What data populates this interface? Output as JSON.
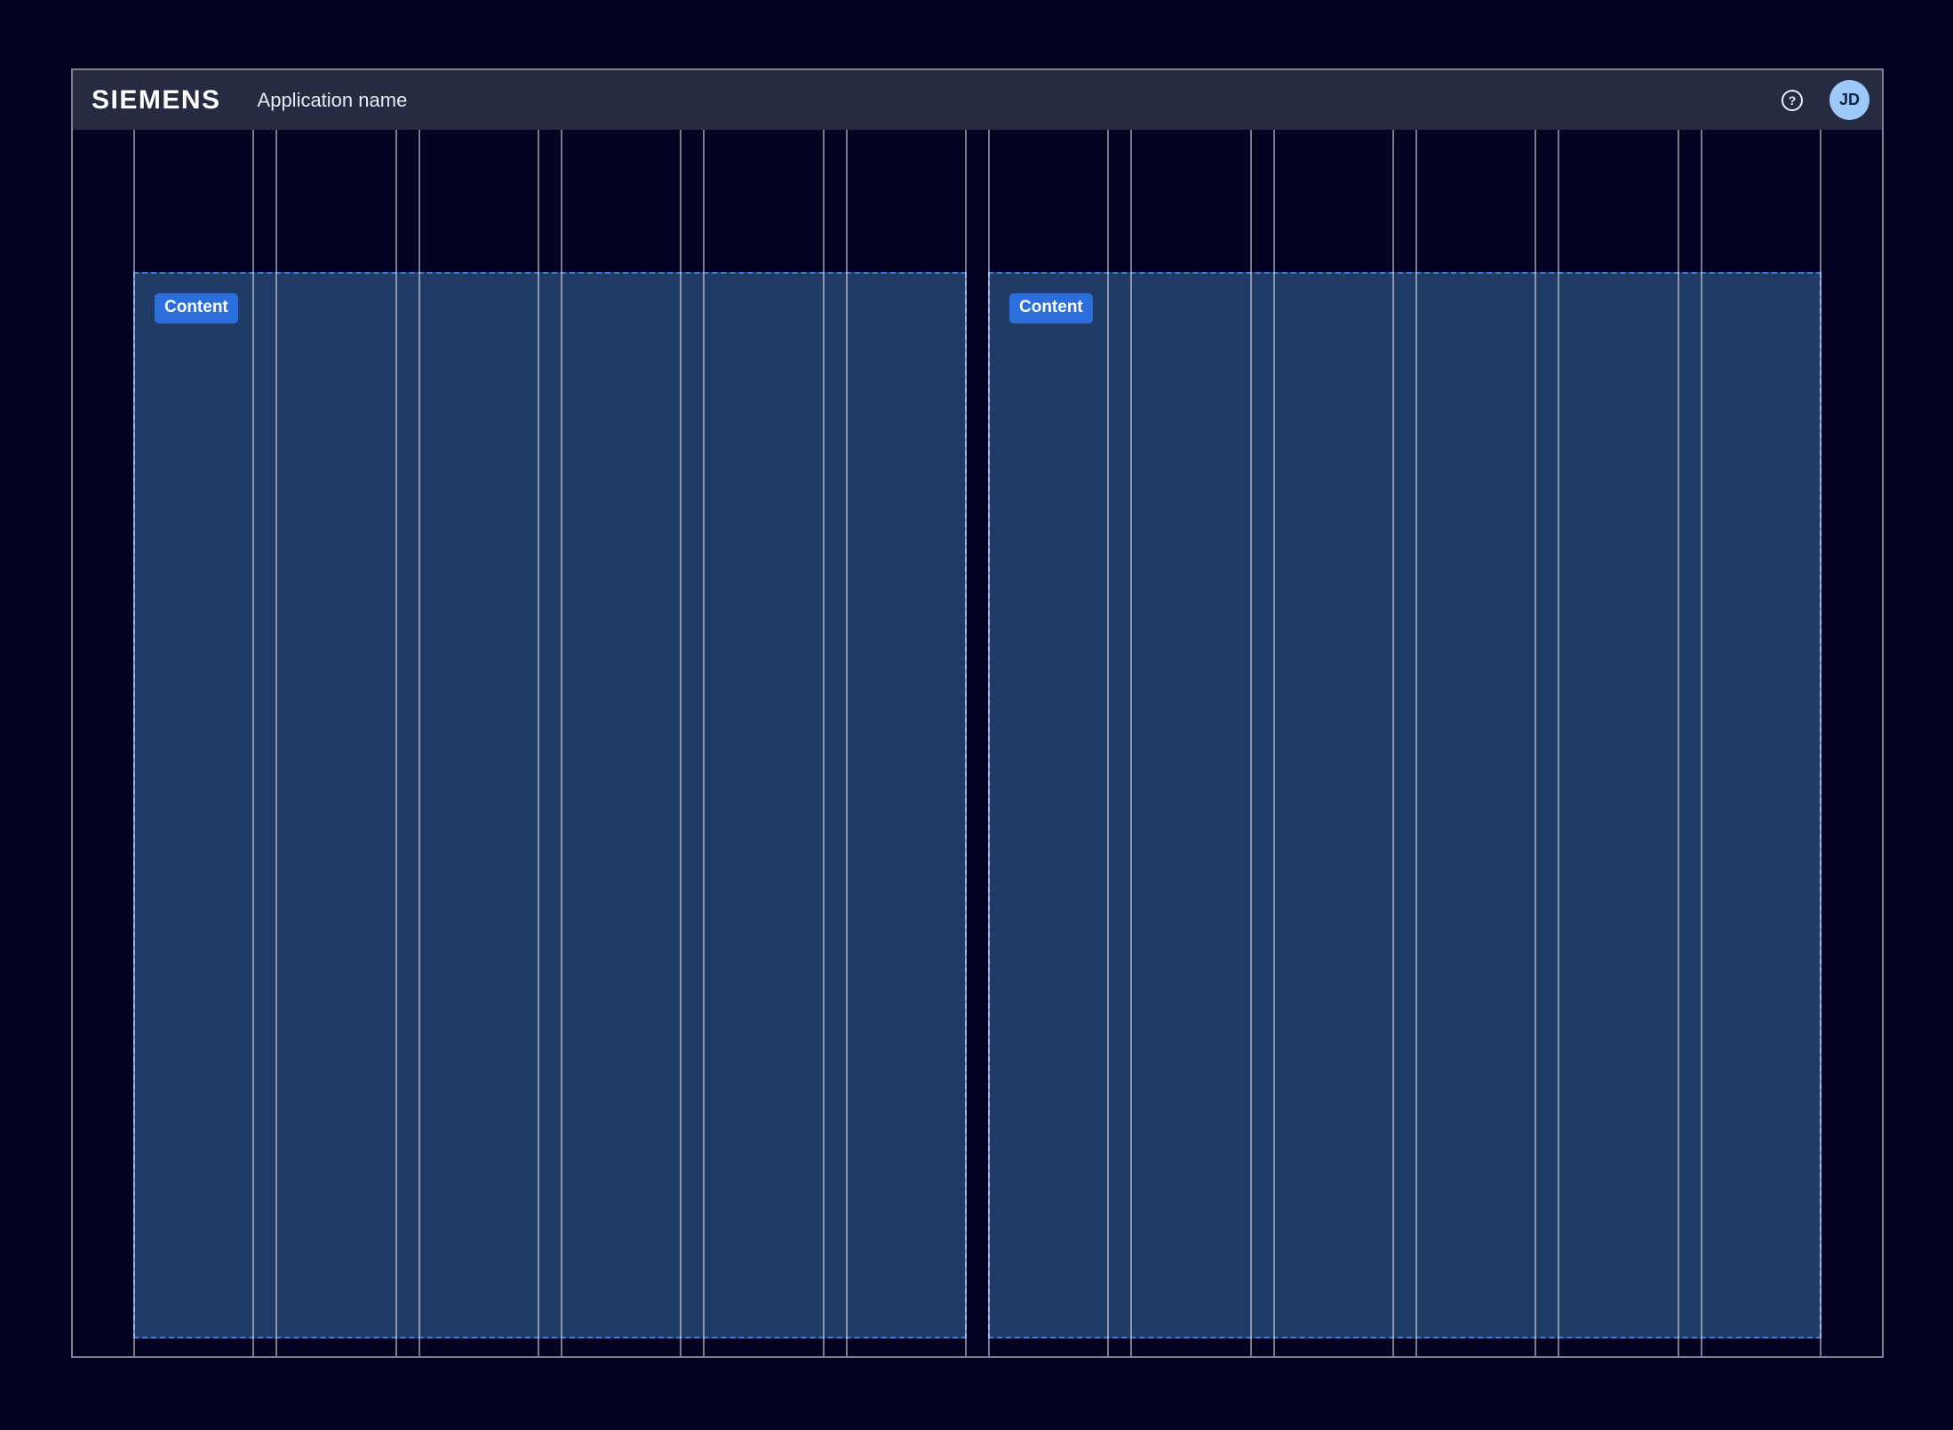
{
  "header": {
    "brand": "SIEMENS",
    "app_name": "Application name",
    "help_icon_glyph": "?",
    "avatar_initials": "JD"
  },
  "grid": {
    "column_count": 12,
    "content_blocks": [
      {
        "label": "Content"
      },
      {
        "label": "Content"
      }
    ]
  },
  "colors": {
    "page_bg": "#040221",
    "header_bg": "#262B42",
    "frame_line": "rgba(255,255,255,0.50)",
    "grid_line": "rgba(255,255,255,0.47)",
    "content_fill": "#1F3B66",
    "content_border": "#3D7BE8",
    "chip_bg": "#2B6FDD",
    "chip_text": "#FFFFFF",
    "avatar_bg": "#9DC9F8",
    "avatar_text": "#131F3E",
    "brand_text": "#FFFFFF",
    "appname_text": "#E9EAF2",
    "help_line": "#EDEEF4"
  }
}
